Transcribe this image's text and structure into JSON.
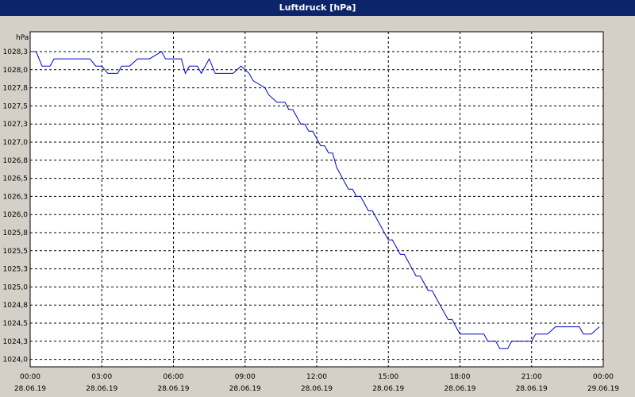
{
  "window": {
    "title": "Luftdruck [hPa]"
  },
  "chart_data": {
    "type": "line",
    "title": "Luftdruck [hPa]",
    "ylabel": "hPa",
    "xlabel": "",
    "ylim": [
      1023.95,
      1028.5
    ],
    "xlim": [
      "28.06.19 00:00",
      "29.06.19 00:00"
    ],
    "grid": true,
    "y_ticks": [
      "1028,3",
      "1028,0",
      "1027,8",
      "1027,5",
      "1027,3",
      "1027,0",
      "1026,8",
      "1026,5",
      "1026,3",
      "1026,0",
      "1025,8",
      "1025,5",
      "1025,3",
      "1025,0",
      "1024,8",
      "1024,5",
      "1024,3",
      "1024,0"
    ],
    "x_ticks": [
      {
        "time": "00:00",
        "date": "28.06.19"
      },
      {
        "time": "03:00",
        "date": "28.06.19"
      },
      {
        "time": "06:00",
        "date": "28.06.19"
      },
      {
        "time": "09:00",
        "date": "28.06.19"
      },
      {
        "time": "12:00",
        "date": "28.06.19"
      },
      {
        "time": "15:00",
        "date": "28.06.19"
      },
      {
        "time": "18:00",
        "date": "28.06.19"
      },
      {
        "time": "21:00",
        "date": "28.06.19"
      },
      {
        "time": "00:00",
        "date": "29.06.19"
      }
    ],
    "series": [
      {
        "color": "#0000cc",
        "x": [
          "00:00",
          "00:15",
          "00:30",
          "00:50",
          "01:00",
          "02:30",
          "02:45",
          "03:00",
          "03:15",
          "03:40",
          "03:50",
          "04:10",
          "04:30",
          "05:00",
          "05:30",
          "05:40",
          "05:50",
          "06:20",
          "06:30",
          "06:40",
          "07:00",
          "07:10",
          "07:30",
          "07:45",
          "08:30",
          "08:50",
          "09:10",
          "09:20",
          "09:50",
          "10:00",
          "10:20",
          "10:40",
          "10:50",
          "11:00",
          "11:10",
          "11:20",
          "11:30",
          "11:40",
          "11:50",
          "12:00",
          "12:10",
          "12:20",
          "12:30",
          "12:40",
          "12:50",
          "13:00",
          "13:10",
          "13:20",
          "13:30",
          "13:40",
          "13:50",
          "14:00",
          "14:10",
          "14:20",
          "14:30",
          "14:40",
          "14:50",
          "15:00",
          "15:10",
          "15:20",
          "15:30",
          "15:40",
          "15:50",
          "16:00",
          "16:10",
          "16:20",
          "16:30",
          "16:40",
          "16:50",
          "17:00",
          "17:10",
          "17:20",
          "17:30",
          "17:40",
          "17:50",
          "18:00",
          "19:00",
          "19:10",
          "19:30",
          "19:40",
          "19:50",
          "20:00",
          "20:10",
          "20:20",
          "21:00",
          "21:10",
          "21:40",
          "22:00",
          "22:30",
          "22:40",
          "23:00",
          "23:10",
          "23:20",
          "23:30",
          "23:50"
        ],
        "values": [
          1028.3,
          1028.3,
          1028.1,
          1028.1,
          1028.2,
          1028.2,
          1028.1,
          1028.1,
          1028.0,
          1028.0,
          1028.1,
          1028.1,
          1028.2,
          1028.2,
          1028.3,
          1028.2,
          1028.2,
          1028.2,
          1028.0,
          1028.1,
          1028.1,
          1028.0,
          1028.2,
          1028.0,
          1028.0,
          1028.1,
          1028.0,
          1027.9,
          1027.8,
          1027.7,
          1027.6,
          1027.6,
          1027.5,
          1027.5,
          1027.4,
          1027.3,
          1027.3,
          1027.2,
          1027.2,
          1027.1,
          1027.0,
          1027.0,
          1026.9,
          1026.9,
          1026.7,
          1026.6,
          1026.5,
          1026.4,
          1026.4,
          1026.3,
          1026.3,
          1026.2,
          1026.1,
          1026.1,
          1026.0,
          1025.9,
          1025.8,
          1025.7,
          1025.7,
          1025.6,
          1025.5,
          1025.5,
          1025.4,
          1025.3,
          1025.2,
          1025.2,
          1025.1,
          1025.0,
          1025.0,
          1024.9,
          1024.8,
          1024.7,
          1024.6,
          1024.6,
          1024.5,
          1024.4,
          1024.4,
          1024.3,
          1024.3,
          1024.2,
          1024.2,
          1024.2,
          1024.3,
          1024.3,
          1024.3,
          1024.4,
          1024.4,
          1024.5,
          1024.5,
          1024.5,
          1024.5,
          1024.4,
          1024.4,
          1024.4,
          1024.5
        ]
      }
    ]
  }
}
